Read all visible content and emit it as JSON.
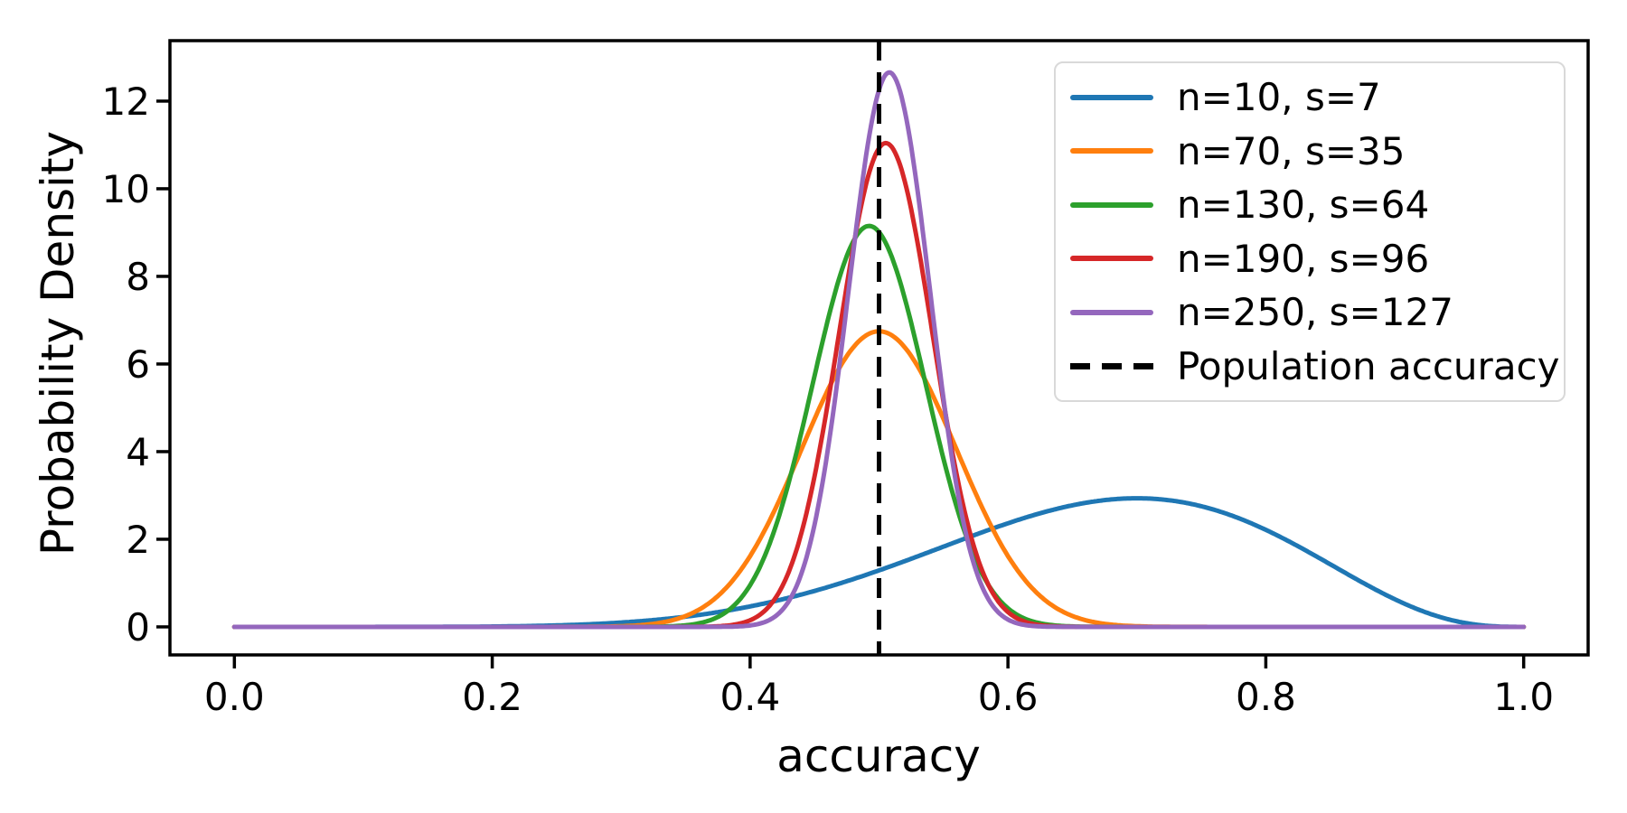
{
  "chart_data": {
    "type": "line",
    "description": "Probability density curves of estimated accuracy for increasing sample sizes, with a dashed vertical line marking the population accuracy at 0.5",
    "xlabel": "accuracy",
    "ylabel": "Probability Density",
    "xlim": [
      -0.05,
      1.05
    ],
    "ylim": [
      -0.64,
      13.38
    ],
    "grid": false,
    "legend_position": "upper right",
    "xticks": {
      "values": [
        0.0,
        0.2,
        0.4,
        0.6,
        0.8,
        1.0
      ],
      "labels": [
        "0.0",
        "0.2",
        "0.4",
        "0.6",
        "0.8",
        "1.0"
      ]
    },
    "yticks": {
      "values": [
        0,
        2,
        4,
        6,
        8,
        10,
        12
      ],
      "labels": [
        "0",
        "2",
        "4",
        "6",
        "8",
        "10",
        "12"
      ]
    },
    "series": [
      {
        "label": "n=10, s=7",
        "n": 10,
        "s": 7,
        "color": "#1f77b4",
        "distribution": "Beta(8, 4)",
        "mode": 0.7,
        "peak_density": 2.94
      },
      {
        "label": "n=70, s=35",
        "n": 70,
        "s": 35,
        "color": "#ff7f0e",
        "distribution": "Beta(36, 36)",
        "mode": 0.5,
        "peak_density": 6.8
      },
      {
        "label": "n=130, s=64",
        "n": 130,
        "s": 64,
        "color": "#2ca02c",
        "distribution": "Beta(65, 67)",
        "mode": 0.492,
        "peak_density": 9.2
      },
      {
        "label": "n=190, s=96",
        "n": 190,
        "s": 96,
        "color": "#d62728",
        "distribution": "Beta(97, 95)",
        "mode": 0.505,
        "peak_density": 11.08
      },
      {
        "label": "n=250, s=127",
        "n": 250,
        "s": 127,
        "color": "#9467bd",
        "distribution": "Beta(128, 124)",
        "mode": 0.508,
        "peak_density": 12.69
      }
    ],
    "vline": {
      "label": "Population accuracy",
      "x": 0.5,
      "color": "#000000",
      "style": "dashed"
    }
  },
  "style": {
    "curve_width": 5,
    "spine_width": 3.5,
    "tick_length": 15,
    "dash_pattern": "22 13",
    "spine_color": "#000000",
    "legend_border_color": "#d9d9d9"
  }
}
